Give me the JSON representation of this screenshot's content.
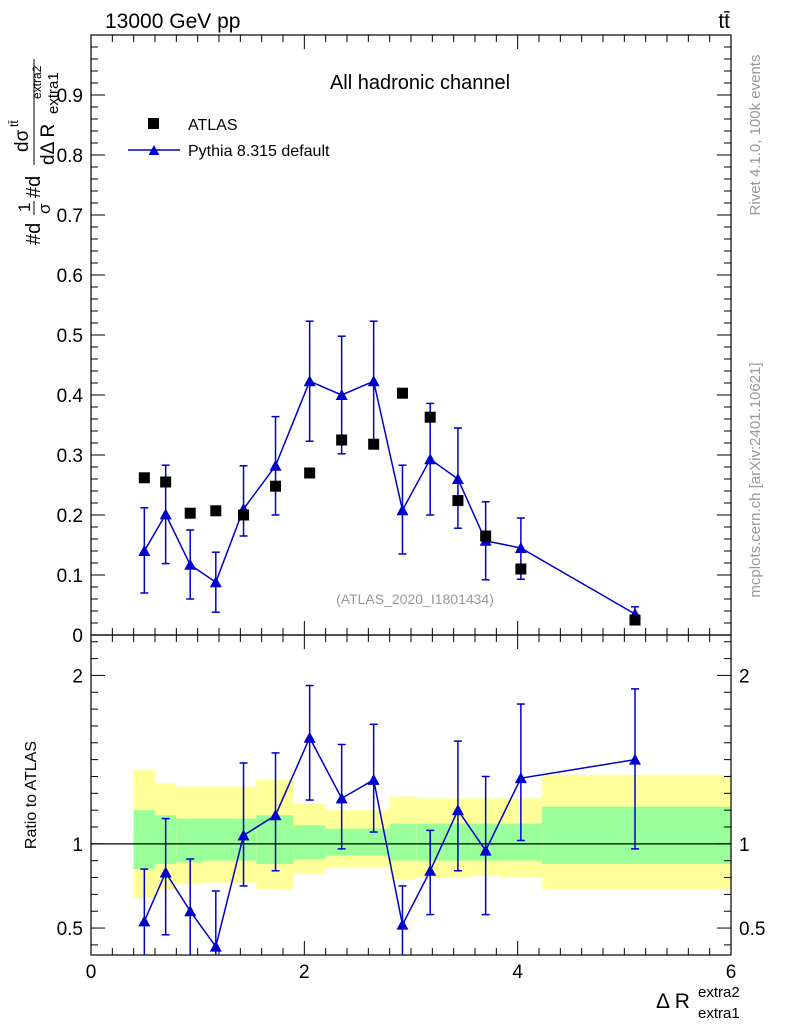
{
  "header": {
    "energy_label": "13000 GeV pp",
    "process_label": "tt̄"
  },
  "side_labels": {
    "rivet": "Rivet 4.1.0,  100k events",
    "mcplots": "mcplots.cern.ch [arXiv:2401.10621]"
  },
  "colors": {
    "mc": "#0000cc",
    "data": "#000000",
    "band_inner": "#99ff99",
    "band_outer": "#ffff99",
    "watermark": "#999999"
  },
  "chart_data": [
    {
      "type": "scatter",
      "title": "All hadronic channel",
      "analysis_id": "(ATLAS_2020_I1801434)",
      "ylabel": {
        "prefix": "#d",
        "frac_num": "1",
        "frac_den": "σ",
        "mid": "#d",
        "num": "dσ",
        "num_sup": "tt̄",
        "den": "dΔ R",
        "den_sup": "extra2",
        "den_sub": "extra1"
      },
      "xlim": [
        0,
        6
      ],
      "ylim": [
        0,
        1.0
      ],
      "yticks": [
        0.1,
        0.2,
        0.3,
        0.4,
        0.5,
        0.6,
        0.7,
        0.8,
        0.9
      ],
      "ytick_labels": [
        "0.1",
        "0.2",
        "0.3",
        "0.4",
        "0.5",
        "0.6",
        "0.7",
        "0.8",
        "0.9"
      ],
      "y_zero_label": "0",
      "legend": [
        "ATLAS",
        "Pythia 8.315 default"
      ],
      "series": [
        {
          "name": "ATLAS",
          "marker": "square",
          "x": [
            0.5,
            0.7,
            0.93,
            1.17,
            1.43,
            1.73,
            2.05,
            2.35,
            2.65,
            2.92,
            3.18,
            3.44,
            3.7,
            4.03,
            5.1
          ],
          "y": [
            0.262,
            0.255,
            0.203,
            0.207,
            0.2,
            0.248,
            0.27,
            0.325,
            0.318,
            0.403,
            0.363,
            0.224,
            0.165,
            0.11,
            0.025
          ]
        },
        {
          "name": "Pythia 8.315 default",
          "marker": "triangle",
          "x": [
            0.5,
            0.7,
            0.93,
            1.17,
            1.43,
            1.73,
            2.05,
            2.35,
            2.65,
            2.92,
            3.18,
            3.44,
            3.7,
            4.03,
            5.1
          ],
          "y": [
            0.14,
            0.201,
            0.117,
            0.088,
            0.21,
            0.282,
            0.423,
            0.4,
            0.423,
            0.208,
            0.293,
            0.26,
            0.157,
            0.145,
            0.035
          ],
          "err_lo": [
            0.07,
            0.082,
            0.057,
            0.05,
            0.045,
            0.082,
            0.1,
            0.098,
            0.1,
            0.073,
            0.093,
            0.082,
            0.065,
            0.052,
            0.01
          ],
          "err_hi": [
            0.072,
            0.082,
            0.058,
            0.05,
            0.072,
            0.082,
            0.1,
            0.098,
            0.1,
            0.075,
            0.093,
            0.085,
            0.065,
            0.05,
            0.012
          ]
        }
      ]
    },
    {
      "type": "scatter",
      "ylabel": "Ratio to ATLAS",
      "xlabel": {
        "main": "Δ R",
        "sup": "extra2",
        "sub": "extra1"
      },
      "xlim": [
        0,
        6
      ],
      "ylim": [
        0.34,
        2.24
      ],
      "xticks": [
        0,
        2,
        4,
        6
      ],
      "xtick_labels": [
        "0",
        "2",
        "4",
        "6"
      ],
      "yticks": [
        0.5,
        1,
        2
      ],
      "ytick_labels": [
        "0.5",
        "1",
        "2"
      ],
      "bands": {
        "x_edges": [
          0.4,
          0.6,
          0.8,
          1.05,
          1.3,
          1.55,
          1.9,
          2.2,
          2.5,
          2.8,
          3.05,
          3.3,
          3.57,
          3.83,
          4.23,
          6.0
        ],
        "inner_lo": [
          0.85,
          0.88,
          0.89,
          0.9,
          0.9,
          0.88,
          0.91,
          0.93,
          0.93,
          0.9,
          0.9,
          0.9,
          0.9,
          0.9,
          0.88
        ],
        "inner_hi": [
          1.2,
          1.17,
          1.15,
          1.15,
          1.15,
          1.17,
          1.11,
          1.09,
          1.09,
          1.12,
          1.12,
          1.12,
          1.12,
          1.12,
          1.22
        ],
        "outer_lo": [
          0.68,
          0.73,
          0.76,
          0.77,
          0.77,
          0.73,
          0.82,
          0.86,
          0.86,
          0.79,
          0.8,
          0.8,
          0.81,
          0.8,
          0.73
        ],
        "outer_hi": [
          1.44,
          1.36,
          1.34,
          1.34,
          1.34,
          1.38,
          1.24,
          1.2,
          1.2,
          1.28,
          1.27,
          1.27,
          1.27,
          1.27,
          1.41
        ]
      },
      "series": [
        {
          "name": "Pythia 8.315 default / ATLAS",
          "x": [
            0.5,
            0.7,
            0.93,
            1.17,
            1.43,
            1.73,
            2.05,
            2.35,
            2.65,
            2.92,
            3.18,
            3.44,
            3.7,
            4.03,
            5.1
          ],
          "y": [
            0.54,
            0.83,
            0.6,
            0.39,
            1.05,
            1.17,
            1.63,
            1.27,
            1.38,
            0.52,
            0.84,
            1.2,
            0.96,
            1.39,
            1.5
          ],
          "err_lo": [
            0.3,
            0.37,
            0.3,
            0.28,
            0.3,
            0.33,
            0.37,
            0.3,
            0.31,
            0.21,
            0.26,
            0.36,
            0.38,
            0.37,
            0.53
          ],
          "err_hi": [
            0.31,
            0.32,
            0.31,
            0.33,
            0.43,
            0.37,
            0.31,
            0.32,
            0.33,
            0.23,
            0.24,
            0.41,
            0.44,
            0.44,
            0.42
          ]
        }
      ]
    }
  ]
}
